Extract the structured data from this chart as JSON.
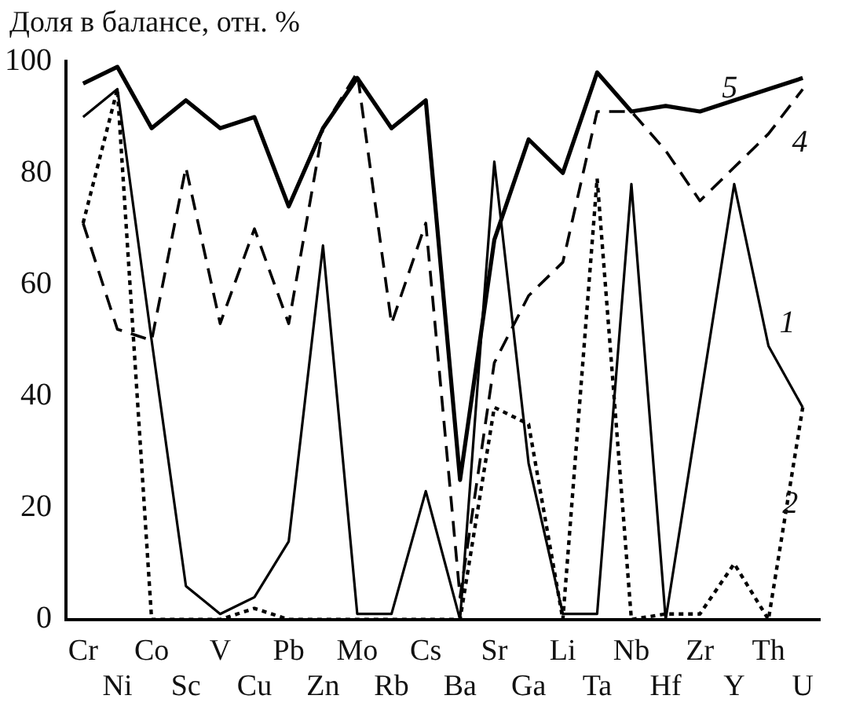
{
  "chart_data": {
    "type": "line",
    "ylabel": "Доля в балансе, отн. %",
    "categories": [
      "Cr",
      "Ni",
      "Co",
      "Sc",
      "V",
      "Cu",
      "Pb",
      "Zn",
      "Mo",
      "Rb",
      "Cs",
      "Ba",
      "Sr",
      "Ga",
      "Li",
      "Ta",
      "Nb",
      "Hf",
      "Zr",
      "Y",
      "Th",
      "U"
    ],
    "series": [
      {
        "name": "5",
        "color": "#000000",
        "line_style": "solid",
        "values": [
          96,
          99,
          88,
          93,
          88,
          90,
          74,
          88,
          97,
          88,
          93,
          25,
          68,
          86,
          80,
          98,
          91,
          92,
          91,
          93,
          95,
          97
        ]
      },
      {
        "name": "4",
        "color": "#000000",
        "line_style": "dashed",
        "values": [
          71,
          52,
          50,
          81,
          53,
          70,
          53,
          88,
          98,
          53,
          71,
          4,
          46,
          58,
          64,
          91,
          91,
          84,
          75,
          81,
          87,
          95
        ]
      },
      {
        "name": "1",
        "color": "#000000",
        "line_style": "solid",
        "values": [
          90,
          95,
          50,
          6,
          1,
          4,
          14,
          67,
          1,
          1,
          23,
          0,
          82,
          28,
          1,
          1,
          78,
          0,
          39,
          78,
          49,
          38
        ]
      },
      {
        "name": "2",
        "color": "#000000",
        "line_style": "dotted",
        "values": [
          71,
          95,
          0,
          0,
          0,
          2,
          0,
          0,
          0,
          0,
          0,
          0,
          38,
          35,
          0,
          79,
          0,
          1,
          1,
          10,
          0,
          38
        ]
      }
    ],
    "ylim": [
      0,
      100
    ],
    "yticks": [
      0,
      20,
      40,
      60,
      80,
      100
    ],
    "grid": false,
    "legend": false,
    "marker": "none"
  }
}
